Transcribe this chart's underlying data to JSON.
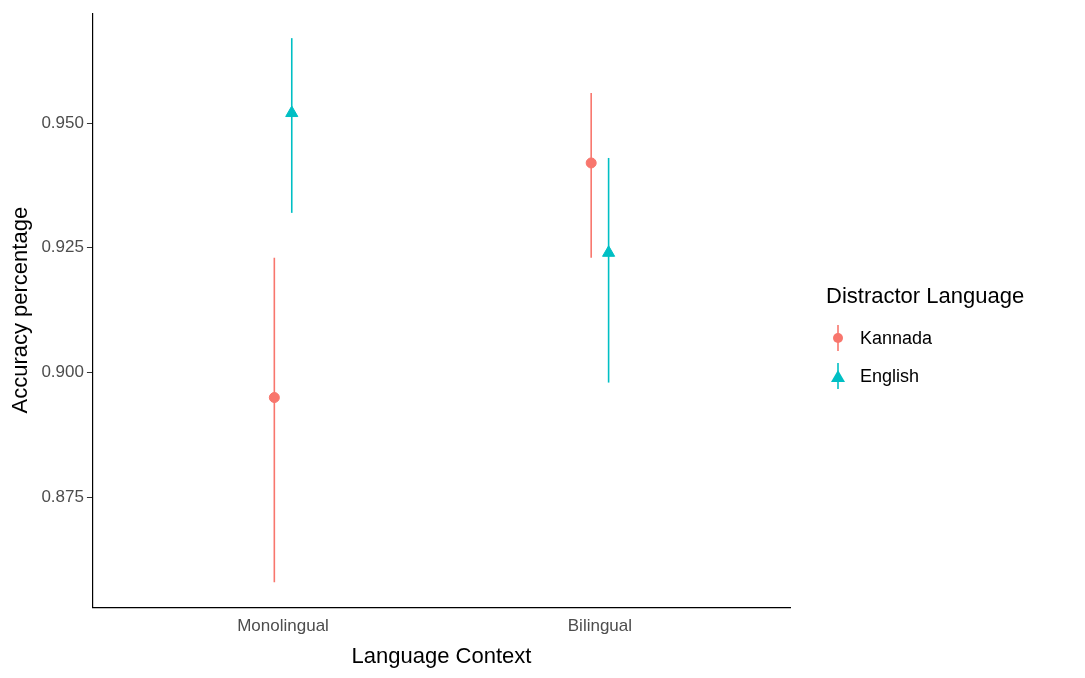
{
  "chart_data": {
    "type": "scatter",
    "xlabel": "Language Context",
    "ylabel": "Accuracy percentage",
    "legend_title": "Distractor Language",
    "legend": "right",
    "grid": false,
    "categories": [
      "Monolingual",
      "Bilingual"
    ],
    "ylim": [
      0.853,
      0.972
    ],
    "yticks": [
      {
        "value": 0.875,
        "label": "0.875"
      },
      {
        "value": 0.9,
        "label": "0.900"
      },
      {
        "value": 0.925,
        "label": "0.925"
      },
      {
        "value": 0.95,
        "label": "0.950"
      }
    ],
    "series": [
      {
        "name": "Kannada",
        "color": "#f8766d",
        "marker": "circle",
        "values": [
          0.895,
          0.942
        ],
        "errors": [
          [
            0.858,
            0.923
          ],
          [
            0.923,
            0.956
          ]
        ]
      },
      {
        "name": "English",
        "color": "#00bfc4",
        "marker": "triangle",
        "values": [
          0.952,
          0.924
        ],
        "errors": [
          [
            0.932,
            0.967
          ],
          [
            0.898,
            0.943
          ]
        ]
      }
    ]
  }
}
